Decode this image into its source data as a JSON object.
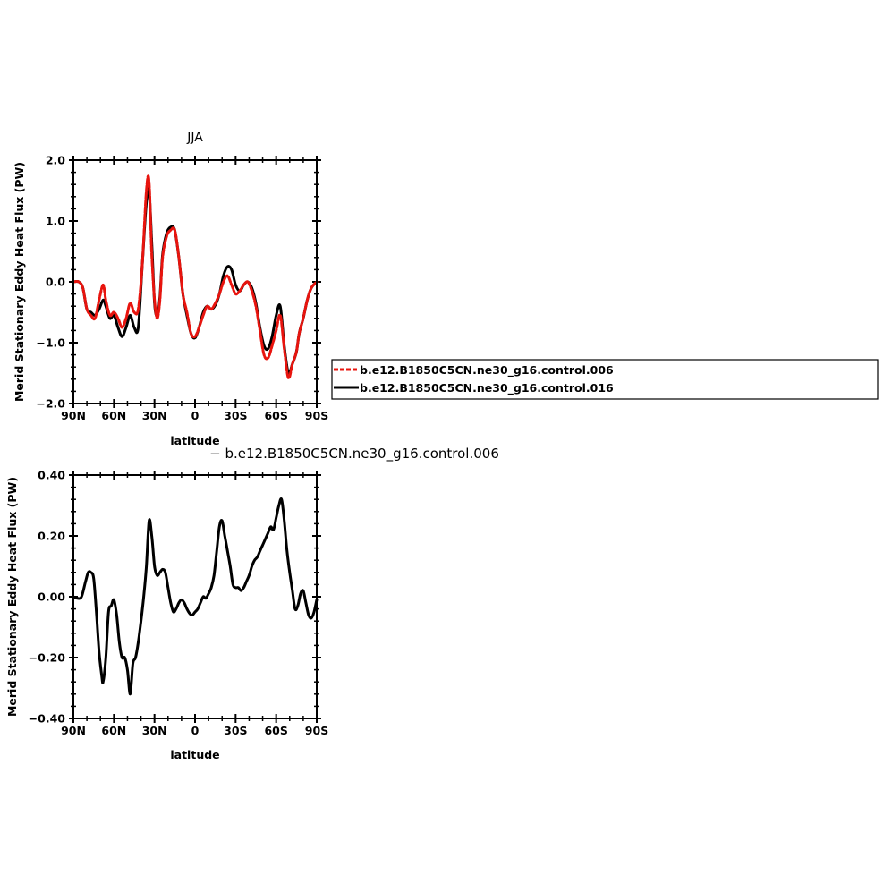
{
  "chart_data": [
    {
      "type": "line",
      "title": "JJA",
      "xlabel": "latitude",
      "ylabel": "Merid Stationary Eddy Heat Flux (PW)",
      "xlim": [
        90,
        -90
      ],
      "ylim": [
        -2.0,
        2.0
      ],
      "xticks": [
        90,
        60,
        30,
        0,
        -30,
        -60,
        -90
      ],
      "xtick_labels": [
        "90N",
        "60N",
        "30N",
        "0",
        "30S",
        "60S",
        "90S"
      ],
      "yticks": [
        -2.0,
        -1.0,
        0.0,
        1.0,
        2.0
      ],
      "ytick_labels": [
        "−2.0",
        "−1.0",
        "0.0",
        "1.0",
        "2.0"
      ],
      "legend_position": "right",
      "series": [
        {
          "name": "b.e12.B1850C5CN.ne30_g16.control.006",
          "color": "#e8140e",
          "dash": "dashed",
          "x": [
            90,
            86,
            83,
            80,
            77,
            74,
            71,
            68,
            66,
            63,
            60,
            57,
            54,
            51,
            48,
            45,
            42,
            39,
            36,
            34,
            32,
            30,
            28,
            26,
            24,
            21,
            18,
            15,
            12,
            9,
            6,
            3,
            0,
            -3,
            -6,
            -9,
            -12,
            -15,
            -18,
            -21,
            -24,
            -27,
            -30,
            -33,
            -36,
            -39,
            -42,
            -45,
            -48,
            -51,
            -54,
            -57,
            -60,
            -63,
            -66,
            -69,
            -72,
            -75,
            -77,
            -80,
            -83,
            -86,
            -90
          ],
          "y": [
            0.0,
            0.0,
            -0.1,
            -0.45,
            -0.55,
            -0.6,
            -0.3,
            -0.05,
            -0.3,
            -0.55,
            -0.5,
            -0.6,
            -0.75,
            -0.6,
            -0.35,
            -0.5,
            -0.45,
            0.3,
            1.5,
            1.65,
            0.45,
            -0.3,
            -0.6,
            -0.3,
            0.4,
            0.75,
            0.85,
            0.85,
            0.4,
            -0.2,
            -0.5,
            -0.85,
            -0.9,
            -0.75,
            -0.55,
            -0.4,
            -0.45,
            -0.35,
            -0.2,
            0.0,
            0.1,
            -0.05,
            -0.2,
            -0.15,
            -0.05,
            0.0,
            -0.15,
            -0.4,
            -0.8,
            -1.2,
            -1.25,
            -1.05,
            -0.8,
            -0.55,
            -1.1,
            -1.58,
            -1.35,
            -1.15,
            -0.85,
            -0.6,
            -0.3,
            -0.1,
            0.0
          ]
        },
        {
          "name": "b.e12.B1850C5CN.ne30_g16.control.016",
          "color": "#000000",
          "dash": "solid",
          "x": [
            90,
            86,
            83,
            80,
            77,
            74,
            71,
            68,
            66,
            63,
            60,
            57,
            54,
            51,
            48,
            45,
            42,
            39,
            36,
            34,
            32,
            30,
            28,
            26,
            24,
            21,
            18,
            15,
            12,
            9,
            6,
            3,
            0,
            -3,
            -6,
            -9,
            -12,
            -15,
            -18,
            -21,
            -24,
            -27,
            -30,
            -33,
            -36,
            -39,
            -42,
            -45,
            -48,
            -51,
            -54,
            -57,
            -60,
            -63,
            -66,
            -69,
            -72,
            -75,
            -77,
            -80,
            -83,
            -86,
            -90
          ],
          "y": [
            0.0,
            0.0,
            -0.1,
            -0.45,
            -0.5,
            -0.55,
            -0.45,
            -0.3,
            -0.4,
            -0.6,
            -0.55,
            -0.75,
            -0.9,
            -0.75,
            -0.55,
            -0.75,
            -0.75,
            0.3,
            1.3,
            1.5,
            0.65,
            -0.35,
            -0.55,
            -0.25,
            0.45,
            0.8,
            0.9,
            0.85,
            0.4,
            -0.2,
            -0.55,
            -0.85,
            -0.92,
            -0.75,
            -0.5,
            -0.4,
            -0.45,
            -0.38,
            -0.2,
            0.1,
            0.25,
            0.2,
            -0.05,
            -0.15,
            -0.05,
            0.0,
            -0.1,
            -0.35,
            -0.75,
            -1.05,
            -1.1,
            -0.9,
            -0.55,
            -0.4,
            -1.05,
            -1.5,
            -1.35,
            -1.15,
            -0.85,
            -0.6,
            -0.3,
            -0.1,
            0.0
          ]
        }
      ]
    },
    {
      "type": "line",
      "title": "− b.e12.B1850C5CN.ne30_g16.control.006",
      "xlabel": "latitude",
      "ylabel": "Merid Stationary Eddy Heat Flux (PW)",
      "xlim": [
        90,
        -90
      ],
      "ylim": [
        -0.4,
        0.4
      ],
      "xticks": [
        90,
        60,
        30,
        0,
        -30,
        -60,
        -90
      ],
      "xtick_labels": [
        "90N",
        "60N",
        "30N",
        "0",
        "30S",
        "60S",
        "90S"
      ],
      "yticks": [
        -0.4,
        -0.2,
        0.0,
        0.2,
        0.4
      ],
      "ytick_labels": [
        "−0.40",
        "−0.20",
        "0.00",
        "0.20",
        "0.40"
      ],
      "series": [
        {
          "color": "#000000",
          "dash": "solid",
          "x": [
            90,
            87,
            84,
            81,
            79,
            77,
            75,
            73,
            71,
            69,
            68,
            66,
            64,
            62,
            60,
            58,
            56,
            54,
            52,
            50,
            48,
            46,
            44,
            42,
            40,
            38,
            36,
            34,
            32,
            30,
            28,
            26,
            24,
            22,
            20,
            18,
            16,
            14,
            12,
            10,
            8,
            6,
            4,
            2,
            0,
            -2,
            -4,
            -6,
            -8,
            -10,
            -12,
            -14,
            -16,
            -18,
            -20,
            -22,
            -24,
            -26,
            -28,
            -30,
            -32,
            -34,
            -36,
            -38,
            -40,
            -42,
            -44,
            -46,
            -48,
            -50,
            -52,
            -54,
            -56,
            -58,
            -60,
            -62,
            -64,
            -66,
            -68,
            -70,
            -72,
            -74,
            -76,
            -78,
            -80,
            -82,
            -84,
            -86,
            -88,
            -90
          ],
          "y": [
            0.0,
            -0.005,
            0.0,
            0.05,
            0.08,
            0.08,
            0.06,
            -0.05,
            -0.18,
            -0.26,
            -0.28,
            -0.2,
            -0.05,
            -0.03,
            -0.01,
            -0.06,
            -0.15,
            -0.2,
            -0.2,
            -0.24,
            -0.32,
            -0.22,
            -0.2,
            -0.15,
            -0.08,
            0.0,
            0.1,
            0.25,
            0.2,
            0.1,
            0.07,
            0.08,
            0.09,
            0.08,
            0.03,
            -0.02,
            -0.05,
            -0.04,
            -0.02,
            -0.01,
            -0.02,
            -0.04,
            -0.055,
            -0.06,
            -0.05,
            -0.04,
            -0.02,
            0.0,
            -0.005,
            0.01,
            0.03,
            0.07,
            0.15,
            0.23,
            0.25,
            0.2,
            0.15,
            0.1,
            0.04,
            0.03,
            0.03,
            0.02,
            0.03,
            0.05,
            0.07,
            0.1,
            0.12,
            0.13,
            0.15,
            0.17,
            0.19,
            0.21,
            0.23,
            0.22,
            0.26,
            0.3,
            0.32,
            0.25,
            0.15,
            0.08,
            0.02,
            -0.04,
            -0.03,
            0.01,
            0.02,
            -0.02,
            -0.06,
            -0.07,
            -0.05,
            -0.01
          ]
        }
      ]
    }
  ]
}
